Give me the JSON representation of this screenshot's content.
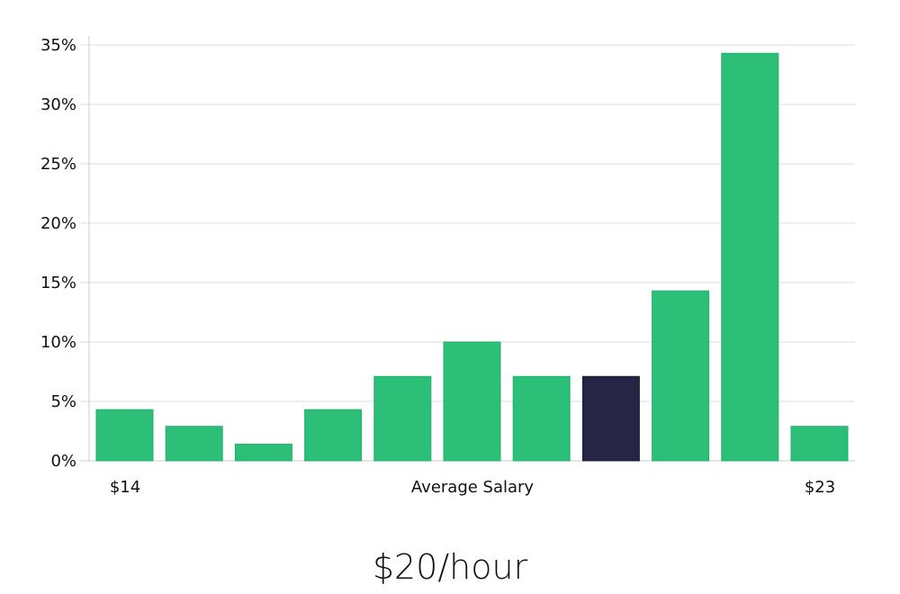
{
  "title": "$20/hour",
  "chart_data": {
    "type": "bar",
    "title": "$20/hour",
    "xlabel": "Average Salary",
    "ylabel": "",
    "x_range_labels": {
      "left": "$14",
      "right": "$23"
    },
    "categories": [
      "bin1",
      "bin2",
      "bin3",
      "bin4",
      "bin5",
      "bin6",
      "bin7",
      "bin8",
      "bin9",
      "bin10",
      "bin11"
    ],
    "values": [
      4.3,
      2.9,
      1.4,
      4.3,
      7.1,
      10.0,
      7.1,
      7.1,
      14.3,
      34.3,
      2.9
    ],
    "highlight_index": 7,
    "colors": {
      "bar": "#2bbf78",
      "bar_border": "#23b06c",
      "highlight": "#272546",
      "grid": "#dddddd",
      "axis": "#cccccc"
    },
    "yticks": [
      "0%",
      "5%",
      "10%",
      "15%",
      "20%",
      "25%",
      "30%",
      "35%"
    ],
    "ylim": [
      0,
      35
    ],
    "grid": true,
    "legend": null
  }
}
